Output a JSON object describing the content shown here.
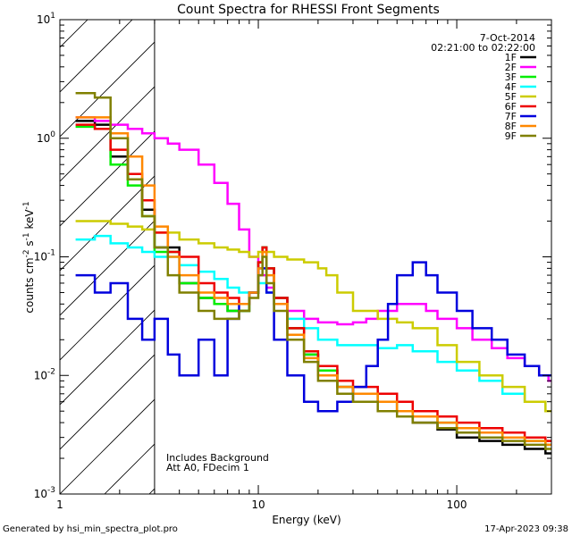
{
  "chart_data": {
    "type": "line",
    "title": "Count Spectra for RHESSI Front Segments",
    "xlabel": "Energy (keV)",
    "ylabel_main": "counts cm",
    "ylabel_exp1": "-2",
    "ylabel_mid": " s",
    "ylabel_exp2": "-1",
    "ylabel_end": " keV",
    "ylabel_exp3": "-1",
    "xscale": "log",
    "yscale": "log",
    "xlim": [
      1,
      300
    ],
    "ylim": [
      0.001,
      10
    ],
    "x_ticks": [
      {
        "value": 1,
        "label": "1"
      },
      {
        "value": 10,
        "label": "10"
      },
      {
        "value": 100,
        "label": "100"
      }
    ],
    "y_ticks": [
      {
        "value": 0.001,
        "base": "10",
        "exp": "-3"
      },
      {
        "value": 0.01,
        "base": "10",
        "exp": "-2"
      },
      {
        "value": 0.1,
        "base": "10",
        "exp": "-1"
      },
      {
        "value": 1,
        "base": "10",
        "exp": "0"
      },
      {
        "value": 10,
        "base": "10",
        "exp": "1"
      }
    ],
    "hatched_region": {
      "x0": 1,
      "x1": 3
    },
    "date": "7-Oct-2014",
    "time_range": "02:21:00 to 02:22:00",
    "notes": [
      "Includes Background",
      "Att A0, FDecim 1"
    ],
    "footer_left": "Generated by hsi_min_spectra_plot.pro",
    "footer_right": "17-Apr-2023 09:38",
    "series": [
      {
        "name": "1F",
        "color": "#000000",
        "x": [
          1.2,
          1.5,
          1.8,
          2.2,
          2.6,
          3,
          4,
          5,
          6,
          7,
          8,
          9,
          10,
          10.5,
          11,
          12,
          14,
          17,
          20,
          25,
          30,
          40,
          50,
          60,
          80,
          100,
          130,
          170,
          220,
          280
        ],
        "y": [
          1.4,
          1.3,
          0.7,
          0.45,
          0.25,
          0.12,
          0.06,
          0.045,
          0.04,
          0.035,
          0.035,
          0.05,
          0.09,
          0.12,
          0.08,
          0.045,
          0.025,
          0.015,
          0.011,
          0.008,
          0.007,
          0.006,
          0.005,
          0.004,
          0.0035,
          0.003,
          0.0028,
          0.0026,
          0.0024,
          0.0022
        ]
      },
      {
        "name": "2F",
        "color": "#ff00ff",
        "x": [
          1.2,
          1.5,
          1.8,
          2.2,
          2.6,
          3,
          3.5,
          4,
          5,
          6,
          7,
          8,
          9,
          10,
          11,
          12,
          14,
          17,
          20,
          25,
          30,
          35,
          40,
          50,
          60,
          70,
          80,
          100,
          120,
          150,
          180,
          220,
          260,
          290
        ],
        "y": [
          1.5,
          1.4,
          1.3,
          1.2,
          1.1,
          1.0,
          0.9,
          0.8,
          0.6,
          0.42,
          0.28,
          0.17,
          0.1,
          0.07,
          0.055,
          0.045,
          0.035,
          0.03,
          0.028,
          0.027,
          0.028,
          0.03,
          0.035,
          0.04,
          0.04,
          0.035,
          0.03,
          0.025,
          0.02,
          0.017,
          0.014,
          0.012,
          0.01,
          0.009
        ]
      },
      {
        "name": "3F",
        "color": "#00ee00",
        "x": [
          1.2,
          1.5,
          1.8,
          2.2,
          2.6,
          3,
          4,
          5,
          6,
          7,
          8,
          9,
          10,
          10.5,
          11,
          12,
          14,
          17,
          20,
          25,
          30,
          40,
          50,
          60,
          80,
          100,
          130,
          170,
          220,
          280
        ],
        "y": [
          1.25,
          1.2,
          0.6,
          0.4,
          0.22,
          0.11,
          0.06,
          0.045,
          0.04,
          0.035,
          0.035,
          0.05,
          0.09,
          0.12,
          0.08,
          0.045,
          0.025,
          0.015,
          0.011,
          0.008,
          0.007,
          0.006,
          0.005,
          0.0045,
          0.004,
          0.0036,
          0.0033,
          0.003,
          0.0028,
          0.0026
        ]
      },
      {
        "name": "4F",
        "color": "#00ffff",
        "x": [
          1.2,
          1.5,
          1.8,
          2.2,
          2.6,
          3,
          4,
          5,
          6,
          7,
          8,
          9,
          10,
          11,
          12,
          14,
          17,
          20,
          25,
          30,
          40,
          50,
          60,
          80,
          100,
          130,
          170,
          220,
          280
        ],
        "y": [
          0.14,
          0.15,
          0.13,
          0.12,
          0.11,
          0.1,
          0.085,
          0.075,
          0.065,
          0.055,
          0.05,
          0.05,
          0.06,
          0.05,
          0.04,
          0.03,
          0.025,
          0.02,
          0.018,
          0.018,
          0.017,
          0.018,
          0.016,
          0.013,
          0.011,
          0.009,
          0.007,
          0.006,
          0.005
        ]
      },
      {
        "name": "5F",
        "color": "#cccc00",
        "x": [
          1.2,
          1.5,
          1.8,
          2.2,
          2.6,
          3,
          4,
          5,
          6,
          7,
          8,
          9,
          10,
          12,
          14,
          17,
          20,
          22,
          25,
          30,
          40,
          50,
          60,
          80,
          100,
          130,
          170,
          220,
          280
        ],
        "y": [
          0.2,
          0.2,
          0.19,
          0.18,
          0.17,
          0.16,
          0.14,
          0.13,
          0.12,
          0.115,
          0.11,
          0.1,
          0.11,
          0.1,
          0.095,
          0.09,
          0.08,
          0.07,
          0.05,
          0.035,
          0.03,
          0.028,
          0.025,
          0.018,
          0.013,
          0.01,
          0.008,
          0.006,
          0.005
        ]
      },
      {
        "name": "6F",
        "color": "#ee0000",
        "x": [
          1.2,
          1.5,
          1.8,
          2.2,
          2.6,
          3,
          3.5,
          4,
          5,
          6,
          7,
          8,
          9,
          10,
          10.5,
          11,
          12,
          14,
          17,
          20,
          25,
          30,
          40,
          50,
          60,
          80,
          100,
          130,
          170,
          220,
          280
        ],
        "y": [
          1.3,
          1.2,
          0.8,
          0.5,
          0.3,
          0.16,
          0.11,
          0.1,
          0.06,
          0.05,
          0.045,
          0.04,
          0.05,
          0.09,
          0.12,
          0.08,
          0.045,
          0.025,
          0.016,
          0.012,
          0.009,
          0.008,
          0.007,
          0.006,
          0.005,
          0.0045,
          0.004,
          0.0036,
          0.0033,
          0.003,
          0.0028
        ]
      },
      {
        "name": "7F",
        "color": "#0000dd",
        "x": [
          1.2,
          1.5,
          1.8,
          2.2,
          2.6,
          3,
          3.5,
          4,
          5,
          6,
          7,
          8,
          9,
          10,
          11,
          12,
          14,
          17,
          20,
          25,
          30,
          35,
          40,
          45,
          50,
          60,
          70,
          80,
          100,
          120,
          150,
          180,
          220,
          260,
          290
        ],
        "y": [
          0.07,
          0.05,
          0.06,
          0.03,
          0.02,
          0.03,
          0.015,
          0.01,
          0.02,
          0.01,
          0.03,
          0.04,
          0.05,
          0.08,
          0.05,
          0.02,
          0.01,
          0.006,
          0.005,
          0.006,
          0.008,
          0.012,
          0.02,
          0.04,
          0.07,
          0.09,
          0.07,
          0.05,
          0.035,
          0.025,
          0.02,
          0.015,
          0.012,
          0.01,
          0.01
        ]
      },
      {
        "name": "8F",
        "color": "#ff8800",
        "x": [
          1.2,
          1.5,
          1.8,
          2.2,
          2.6,
          3,
          3.5,
          4,
          5,
          6,
          7,
          8,
          9,
          10,
          10.5,
          11,
          12,
          14,
          17,
          20,
          25,
          30,
          40,
          50,
          60,
          80,
          100,
          130,
          170,
          220,
          280
        ],
        "y": [
          1.5,
          1.5,
          1.1,
          0.7,
          0.4,
          0.18,
          0.1,
          0.07,
          0.05,
          0.045,
          0.04,
          0.04,
          0.05,
          0.08,
          0.11,
          0.07,
          0.04,
          0.022,
          0.014,
          0.01,
          0.008,
          0.007,
          0.006,
          0.005,
          0.0045,
          0.004,
          0.0036,
          0.0033,
          0.003,
          0.0028,
          0.0026
        ]
      },
      {
        "name": "9F",
        "color": "#808000",
        "x": [
          1.2,
          1.5,
          1.8,
          2.2,
          2.6,
          3,
          3.5,
          4,
          5,
          6,
          7,
          8,
          9,
          10,
          10.5,
          11,
          12,
          14,
          17,
          20,
          25,
          30,
          40,
          50,
          60,
          80,
          100,
          130,
          170,
          220,
          280
        ],
        "y": [
          2.4,
          2.2,
          1.0,
          0.45,
          0.22,
          0.12,
          0.07,
          0.05,
          0.035,
          0.03,
          0.03,
          0.035,
          0.045,
          0.07,
          0.1,
          0.06,
          0.035,
          0.02,
          0.013,
          0.009,
          0.007,
          0.006,
          0.005,
          0.0045,
          0.004,
          0.0036,
          0.0033,
          0.003,
          0.0028,
          0.0026,
          0.0024
        ]
      }
    ]
  }
}
